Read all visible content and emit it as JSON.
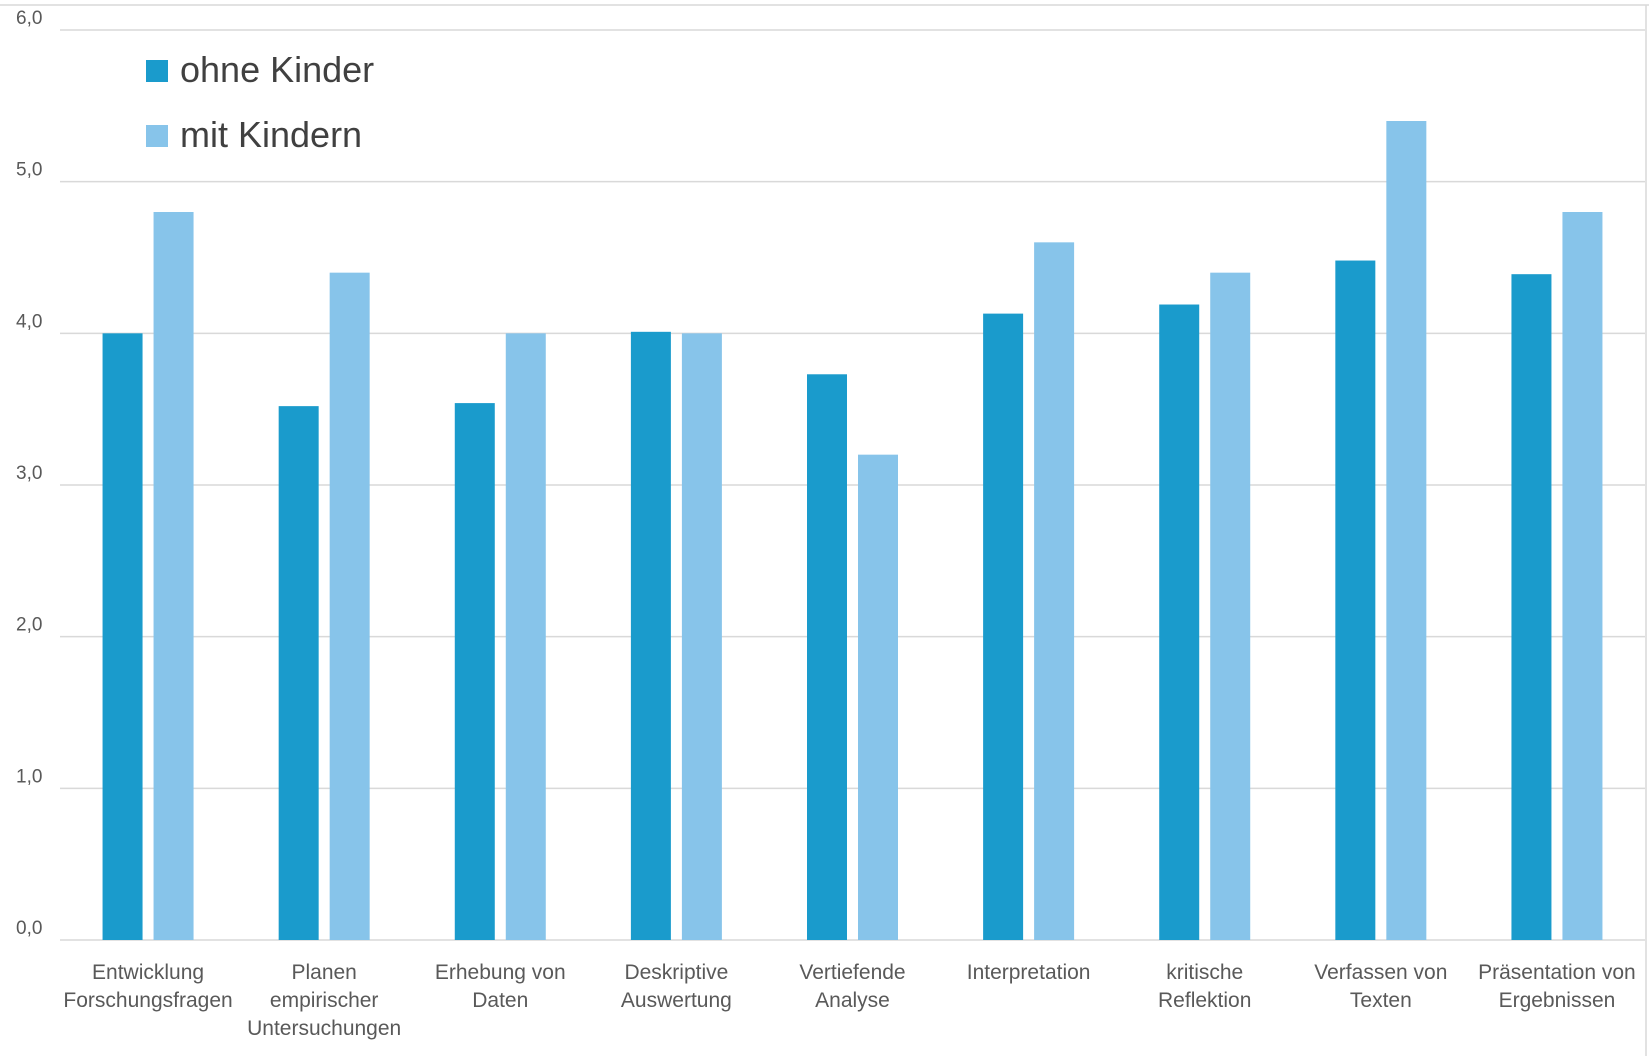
{
  "colors": {
    "series1": "#1a9bcc",
    "series2": "#87c4ea",
    "grid": "#d9d9d9",
    "text": "#595959"
  },
  "chart_data": {
    "type": "bar",
    "categories": [
      [
        "Entwicklung",
        "Forschungsfragen"
      ],
      [
        "Planen",
        "empirischer",
        "Untersuchungen"
      ],
      [
        "Erhebung von",
        "Daten"
      ],
      [
        "Deskriptive",
        "Auswertung"
      ],
      [
        "Vertiefende",
        "Analyse"
      ],
      [
        "Interpretation"
      ],
      [
        "kritische",
        "Reflektion"
      ],
      [
        "Verfassen von",
        "Texten"
      ],
      [
        "Präsentation von",
        "Ergebnissen"
      ]
    ],
    "series": [
      {
        "name": "ohne Kinder",
        "values": [
          4.0,
          3.52,
          3.54,
          4.01,
          3.73,
          4.13,
          4.19,
          4.48,
          4.39
        ]
      },
      {
        "name": "mit Kindern",
        "values": [
          4.8,
          4.4,
          4.0,
          4.0,
          3.2,
          4.6,
          4.4,
          5.4,
          4.8
        ]
      }
    ],
    "ylim": [
      0,
      6
    ],
    "yticks": [
      "0,0",
      "1,0",
      "2,0",
      "3,0",
      "4,0",
      "5,0",
      "6,0"
    ],
    "grid": true,
    "legend": "top-left",
    "title": "",
    "xlabel": "",
    "ylabel": ""
  }
}
